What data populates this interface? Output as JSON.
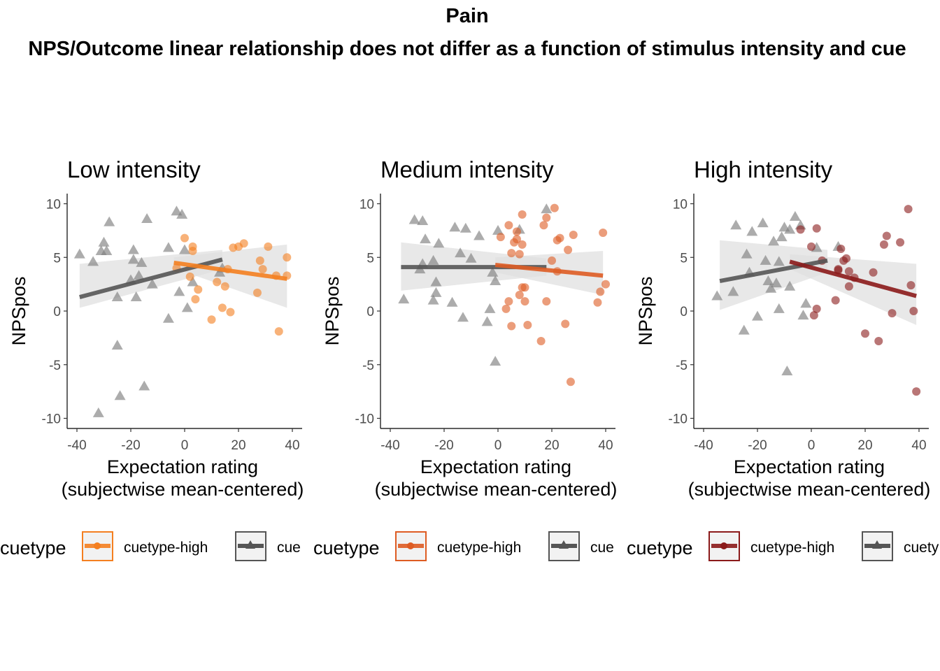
{
  "figure": {
    "title": "Pain",
    "subtitle": "NPS/Outcome linear relationship does not differ as a function of stimulus intensity and cue"
  },
  "chart_data": [
    {
      "type": "scatter",
      "title": "Low intensity",
      "xlabel_line1": "Expectation rating",
      "xlabel_line2": "(subjectwise mean-centered)",
      "ylabel": "NPSpos",
      "xlim": [
        -40,
        40
      ],
      "ylim": [
        -10,
        10
      ],
      "xticks": [
        -40,
        -20,
        0,
        20,
        40
      ],
      "yticks": [
        -10,
        -5,
        0,
        5,
        10
      ],
      "legend": {
        "title": "cuetype",
        "position": "bottom",
        "entries": [
          "cuetype-high",
          "cue"
        ]
      },
      "colors": {
        "high": "#f47f20",
        "low": "#555555",
        "band": "#e0e0e0"
      },
      "series": [
        {
          "name": "cuetype-high",
          "marker": "circle",
          "x": [
            -3,
            0,
            2,
            3,
            3,
            4,
            5,
            10,
            12,
            14,
            15,
            16,
            17,
            18,
            20,
            22,
            27,
            28,
            29,
            31,
            34,
            35,
            38,
            38
          ],
          "y": [
            4.0,
            6.8,
            3.2,
            5.6,
            6.0,
            1.1,
            2.0,
            -0.8,
            2.7,
            0.3,
            2.3,
            3.9,
            -0.1,
            5.9,
            6.0,
            6.3,
            1.7,
            4.7,
            3.9,
            6.0,
            3.3,
            -1.9,
            5.0,
            3.3
          ],
          "fit": {
            "x": [
              -4,
              38
            ],
            "y": [
              4.5,
              3.0
            ]
          },
          "band": {
            "x": [
              -4,
              38
            ],
            "lower": [
              4.0,
              0.3
            ],
            "upper": [
              5.0,
              6.2
            ]
          }
        },
        {
          "name": "cue",
          "marker": "triangle",
          "x": [
            -39,
            -34,
            -32,
            -31,
            -30,
            -29,
            -28,
            -25,
            -25,
            -24,
            -20,
            -19,
            -19,
            -18,
            -17,
            -16,
            -15,
            -14,
            -12,
            -6,
            -6,
            -3,
            -2,
            -1,
            0,
            1,
            3,
            13,
            14
          ],
          "y": [
            5.3,
            4.6,
            -9.5,
            5.6,
            6.4,
            5.6,
            8.3,
            -3.2,
            1.3,
            -7.9,
            2.9,
            5.7,
            4.8,
            1.3,
            3.3,
            4.5,
            -7.0,
            8.6,
            2.5,
            -0.7,
            5.9,
            9.3,
            1.8,
            9.0,
            5.7,
            0.3,
            2.7,
            3.6,
            4.0
          ],
          "fit": {
            "x": [
              -39,
              14
            ],
            "y": [
              1.3,
              4.8
            ]
          },
          "band": {
            "x": [
              -39,
              14
            ],
            "lower": [
              0.3,
              3.9
            ],
            "upper": [
              4.4,
              5.7
            ]
          }
        }
      ]
    },
    {
      "type": "scatter",
      "title": "Medium intensity",
      "xlabel_line1": "Expectation rating",
      "xlabel_line2": "(subjectwise mean-centered)",
      "ylabel": "NPSpos",
      "xlim": [
        -40,
        40
      ],
      "ylim": [
        -10,
        10
      ],
      "xticks": [
        -40,
        -20,
        0,
        20,
        40
      ],
      "yticks": [
        -10,
        -5,
        0,
        5,
        10
      ],
      "legend": {
        "title": "cuetype",
        "position": "bottom",
        "entries": [
          "cuetype-high",
          "cue"
        ]
      },
      "colors": {
        "high": "#de5c23",
        "low": "#555555",
        "band": "#e0e0e0"
      },
      "series": [
        {
          "name": "cuetype-high",
          "marker": "circle",
          "x": [
            1,
            3,
            4,
            4,
            5,
            5,
            6,
            7,
            7,
            8,
            8,
            9,
            9,
            9,
            10,
            10,
            11,
            16,
            17,
            18,
            18,
            20,
            21,
            22,
            22,
            23,
            25,
            26,
            27,
            28,
            37,
            38,
            39,
            40
          ],
          "y": [
            6.9,
            0.2,
            0.9,
            8.0,
            5.4,
            -1.4,
            6.4,
            6.7,
            7.4,
            1.5,
            5.3,
            9.0,
            2.2,
            6.2,
            0.9,
            2.2,
            -1.3,
            -2.8,
            8.0,
            8.7,
            0.9,
            4.7,
            9.6,
            6.6,
            3.7,
            6.8,
            -1.2,
            5.7,
            -6.6,
            7.1,
            0.8,
            1.8,
            7.3,
            2.5
          ],
          "fit": {
            "x": [
              -1,
              39
            ],
            "y": [
              4.3,
              3.3
            ]
          },
          "band": {
            "x": [
              -1,
              39
            ],
            "lower": [
              3.6,
              1.5
            ],
            "upper": [
              5.0,
              5.6
            ]
          }
        },
        {
          "name": "cue",
          "marker": "triangle",
          "x": [
            -35,
            -31,
            -29,
            -28,
            -28,
            -27,
            -24,
            -24,
            -23,
            -23,
            -22,
            -17,
            -16,
            -14,
            -13,
            -12,
            -10,
            -7,
            -4,
            -3,
            -2,
            -1,
            -1,
            0,
            8,
            18
          ],
          "y": [
            1.1,
            8.5,
            3.9,
            8.4,
            4.4,
            6.7,
            1.0,
            4.7,
            2.7,
            1.7,
            6.3,
            0.8,
            7.8,
            5.4,
            -0.6,
            7.7,
            4.9,
            7.0,
            -1.0,
            0.2,
            3.6,
            2.8,
            -4.7,
            7.5,
            7.6,
            9.5
          ],
          "fit": {
            "x": [
              -36,
              18
            ],
            "y": [
              4.1,
              4.1
            ]
          },
          "band": {
            "x": [
              -36,
              18
            ],
            "lower": [
              1.9,
              3.3
            ],
            "upper": [
              6.4,
              4.9
            ]
          }
        }
      ]
    },
    {
      "type": "scatter",
      "title": "High intensity",
      "xlabel_line1": "Expectation rating",
      "xlabel_line2": "(subjectwise mean-centered)",
      "ylabel": "NPSpos",
      "xlim": [
        -40,
        40
      ],
      "ylim": [
        -10,
        10
      ],
      "xticks": [
        -40,
        -20,
        0,
        20,
        40
      ],
      "yticks": [
        -10,
        -5,
        0,
        5,
        10
      ],
      "legend": {
        "title": "cuetype",
        "position": "bottom",
        "entries": [
          "cuetype-high",
          "cuety"
        ]
      },
      "colors": {
        "high": "#8b1a1a",
        "low": "#555555",
        "band": "#e0e0e0"
      },
      "series": [
        {
          "name": "cuetype-high",
          "marker": "circle",
          "x": [
            -4,
            0,
            1,
            2,
            2,
            4,
            9,
            10,
            10,
            11,
            12,
            13,
            14,
            14,
            16,
            20,
            23,
            25,
            27,
            28,
            30,
            33,
            36,
            37,
            38,
            39
          ],
          "y": [
            7.6,
            6.0,
            -0.4,
            0.2,
            7.7,
            4.7,
            1.0,
            3.8,
            3.9,
            5.8,
            4.7,
            4.9,
            2.3,
            3.7,
            3.1,
            -2.1,
            3.6,
            -2.8,
            6.2,
            7.0,
            -0.2,
            6.4,
            9.5,
            2.4,
            0.0,
            -7.5
          ],
          "fit": {
            "x": [
              -8,
              39
            ],
            "y": [
              4.6,
              1.4
            ]
          },
          "band": {
            "x": [
              -8,
              39
            ],
            "lower": [
              3.9,
              -1.3
            ],
            "upper": [
              5.3,
              4.4
            ]
          }
        },
        {
          "name": "cue",
          "marker": "triangle",
          "x": [
            -35,
            -29,
            -28,
            -25,
            -24,
            -23,
            -22,
            -20,
            -18,
            -17,
            -16,
            -15,
            -14,
            -13,
            -12,
            -12,
            -11,
            -10,
            -9,
            -8,
            -8,
            -6,
            -4,
            -3,
            -2,
            2,
            10
          ],
          "y": [
            1.4,
            1.8,
            8.0,
            -1.8,
            5.3,
            3.6,
            7.4,
            -0.5,
            8.2,
            4.7,
            2.8,
            2.1,
            6.5,
            2.6,
            4.6,
            0.2,
            6.9,
            7.8,
            -5.6,
            7.6,
            2.3,
            8.8,
            8.0,
            -0.4,
            0.7,
            5.9,
            6.0
          ],
          "fit": {
            "x": [
              -34,
              6
            ],
            "y": [
              2.8,
              4.7
            ]
          },
          "band": {
            "x": [
              -34,
              6
            ],
            "lower": [
              0.1,
              3.6
            ],
            "upper": [
              6.6,
              5.7
            ]
          }
        }
      ]
    }
  ]
}
